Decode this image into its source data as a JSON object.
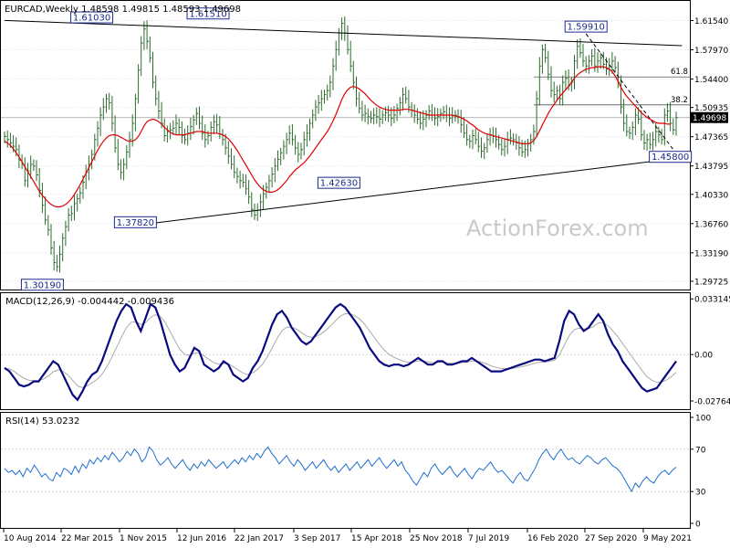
{
  "chart_data": {
    "type": "line",
    "symbol_header": "EURCAD,Weekly  1.48598 1.49815 1.48593 1.49698",
    "watermark": "ActionForex.com",
    "x_tick_labels": [
      "10 Aug 2014",
      "22 Mar 2015",
      "1 Nov 2015",
      "12 Jun 2016",
      "22 Jan 2017",
      "3 Sep 2017",
      "15 Apr 2018",
      "25 Nov 2018",
      "7 Jul 2019",
      "16 Feb 2020",
      "27 Sep 2020",
      "9 May 2021"
    ],
    "price_panel": {
      "ylim": [
        1.2905,
        1.636
      ],
      "y_tick_labels": [
        "1.61540",
        "1.57970",
        "1.54400",
        "1.50935",
        "1.47365",
        "1.43795",
        "1.40330",
        "1.36760",
        "1.33190",
        "1.29725"
      ],
      "current_price": "1.49698",
      "price_labels": [
        "1.61030",
        "1.61510",
        "1.59910",
        "1.37820",
        "1.42630",
        "1.45800",
        "1.30190"
      ],
      "fib_labels": [
        "61.8",
        "38.2"
      ],
      "fib_levels": [
        1.5466,
        1.5125
      ],
      "close_series": [
        1.474,
        1.47,
        1.466,
        1.462,
        1.458,
        1.445,
        1.44,
        1.42,
        1.432,
        1.44,
        1.438,
        1.427,
        1.408,
        1.39,
        1.372,
        1.36,
        1.338,
        1.32,
        1.315,
        1.33,
        1.35,
        1.364,
        1.378,
        1.38,
        1.392,
        1.398,
        1.405,
        1.418,
        1.43,
        1.44,
        1.452,
        1.47,
        1.484,
        1.5,
        1.51,
        1.52,
        1.515,
        1.49,
        1.46,
        1.44,
        1.43,
        1.44,
        1.455,
        1.47,
        1.49,
        1.52,
        1.555,
        1.588,
        1.605,
        1.59,
        1.57,
        1.54,
        1.52,
        1.505,
        1.49,
        1.475,
        1.48,
        1.482,
        1.484,
        1.49,
        1.485,
        1.475,
        1.47,
        1.478,
        1.486,
        1.494,
        1.502,
        1.49,
        1.478,
        1.47,
        1.475,
        1.485,
        1.492,
        1.488,
        1.477,
        1.47,
        1.46,
        1.45,
        1.44,
        1.43,
        1.425,
        1.42,
        1.418,
        1.41,
        1.4,
        1.385,
        1.378,
        1.384,
        1.394,
        1.404,
        1.412,
        1.42,
        1.428,
        1.438,
        1.446,
        1.454,
        1.462,
        1.47,
        1.478,
        1.47,
        1.46,
        1.452,
        1.458,
        1.47,
        1.478,
        1.49,
        1.5,
        1.51,
        1.515,
        1.52,
        1.525,
        1.53,
        1.54,
        1.56,
        1.58,
        1.6,
        1.612,
        1.6,
        1.58,
        1.56,
        1.54,
        1.52,
        1.508,
        1.5,
        1.502,
        1.498,
        1.496,
        1.5,
        1.498,
        1.495,
        1.5,
        1.503,
        1.5,
        1.496,
        1.5,
        1.508,
        1.515,
        1.525,
        1.52,
        1.51,
        1.506,
        1.5,
        1.495,
        1.49,
        1.495,
        1.5,
        1.505,
        1.5,
        1.496,
        1.498,
        1.502,
        1.504,
        1.5,
        1.496,
        1.499,
        1.5,
        1.498,
        1.488,
        1.478,
        1.47,
        1.468,
        1.475,
        1.47,
        1.462,
        1.456,
        1.46,
        1.47,
        1.476,
        1.474,
        1.47,
        1.464,
        1.458,
        1.462,
        1.47,
        1.472,
        1.47,
        1.466,
        1.46,
        1.455,
        1.458,
        1.465,
        1.47,
        1.48,
        1.52,
        1.56,
        1.58,
        1.57,
        1.55,
        1.53,
        1.525,
        1.53,
        1.52,
        1.54,
        1.545,
        1.536,
        1.54,
        1.566,
        1.584,
        1.576,
        1.566,
        1.56,
        1.566,
        1.572,
        1.56,
        1.566,
        1.57,
        1.562,
        1.556,
        1.56,
        1.566,
        1.558,
        1.54,
        1.51,
        1.49,
        1.48,
        1.478,
        1.485,
        1.5,
        1.495,
        1.476,
        1.466,
        1.47,
        1.464,
        1.47,
        1.48,
        1.476,
        1.47,
        1.5,
        1.505,
        1.49,
        1.482,
        1.497
      ],
      "ma_series": [
        1.468,
        1.466,
        1.463,
        1.459,
        1.454,
        1.449,
        1.443,
        1.437,
        1.431,
        1.425,
        1.419,
        1.413,
        1.407,
        1.402,
        1.398,
        1.394,
        1.391,
        1.389,
        1.388,
        1.388,
        1.389,
        1.391,
        1.394,
        1.398,
        1.403,
        1.409,
        1.415,
        1.422,
        1.429,
        1.436,
        1.443,
        1.45,
        1.457,
        1.463,
        1.468,
        1.472,
        1.475,
        1.476,
        1.476,
        1.475,
        1.473,
        1.471,
        1.469,
        1.468,
        1.468,
        1.47,
        1.474,
        1.48,
        1.487,
        1.492,
        1.494,
        1.495,
        1.494,
        1.492,
        1.489,
        1.485,
        1.482,
        1.479,
        1.477,
        1.476,
        1.476,
        1.476,
        1.476,
        1.477,
        1.478,
        1.479,
        1.48,
        1.48,
        1.48,
        1.479,
        1.478,
        1.478,
        1.478,
        1.478,
        1.477,
        1.476,
        1.474,
        1.471,
        1.467,
        1.462,
        1.457,
        1.451,
        1.445,
        1.439,
        1.433,
        1.427,
        1.421,
        1.416,
        1.412,
        1.409,
        1.407,
        1.406,
        1.406,
        1.407,
        1.409,
        1.412,
        1.416,
        1.42,
        1.425,
        1.429,
        1.433,
        1.436,
        1.439,
        1.442,
        1.446,
        1.45,
        1.455,
        1.46,
        1.465,
        1.47,
        1.475,
        1.48,
        1.486,
        1.493,
        1.501,
        1.51,
        1.519,
        1.526,
        1.531,
        1.534,
        1.535,
        1.534,
        1.532,
        1.529,
        1.526,
        1.522,
        1.518,
        1.515,
        1.512,
        1.51,
        1.508,
        1.507,
        1.506,
        1.506,
        1.506,
        1.506,
        1.506,
        1.507,
        1.507,
        1.507,
        1.506,
        1.505,
        1.504,
        1.503,
        1.502,
        1.501,
        1.5,
        1.5,
        1.5,
        1.5,
        1.5,
        1.5,
        1.5,
        1.5,
        1.5,
        1.499,
        1.498,
        1.497,
        1.495,
        1.493,
        1.49,
        1.488,
        1.485,
        1.482,
        1.48,
        1.478,
        1.477,
        1.476,
        1.475,
        1.474,
        1.473,
        1.472,
        1.471,
        1.47,
        1.469,
        1.468,
        1.467,
        1.466,
        1.465,
        1.465,
        1.465,
        1.466,
        1.469,
        1.474,
        1.481,
        1.488,
        1.495,
        1.502,
        1.508,
        1.513,
        1.518,
        1.523,
        1.527,
        1.531,
        1.535,
        1.54,
        1.545,
        1.549,
        1.552,
        1.554,
        1.556,
        1.557,
        1.558,
        1.558,
        1.559,
        1.559,
        1.559,
        1.558,
        1.556,
        1.553,
        1.548,
        1.541,
        1.534,
        1.528,
        1.523,
        1.519,
        1.515,
        1.511,
        1.507,
        1.503,
        1.5,
        1.497,
        1.495,
        1.493,
        1.491,
        1.49,
        1.49,
        1.49,
        1.489,
        1.489
      ],
      "trendlines": [
        {
          "from": [
            0,
            1.6155
          ],
          "to": [
            233,
            1.5848
          ]
        },
        {
          "from": [
            44,
            1.365
          ],
          "to": [
            233,
            1.448
          ]
        },
        {
          "from": [
            200,
            1.5991
          ],
          "to": [
            230,
            1.458
          ]
        }
      ]
    },
    "macd_panel": {
      "label": "MACD(12,26,9) -0.004442 -0.009436",
      "ylim": [
        -0.032,
        0.036
      ],
      "y_tick_labels": [
        "0.033145",
        "0.00",
        "-0.027648"
      ],
      "macd": [
        -0.008,
        -0.01,
        -0.014,
        -0.018,
        -0.019,
        -0.018,
        -0.016,
        -0.016,
        -0.012,
        -0.008,
        -0.004,
        -0.006,
        -0.012,
        -0.018,
        -0.024,
        -0.027,
        -0.022,
        -0.016,
        -0.012,
        -0.01,
        -0.004,
        0.004,
        0.012,
        0.02,
        0.026,
        0.03,
        0.028,
        0.02,
        0.014,
        0.022,
        0.03,
        0.028,
        0.02,
        0.01,
        0.0,
        -0.006,
        -0.01,
        -0.008,
        -0.002,
        0.004,
        0.002,
        -0.006,
        -0.008,
        -0.01,
        -0.008,
        -0.004,
        -0.006,
        -0.012,
        -0.014,
        -0.016,
        -0.014,
        -0.008,
        -0.004,
        0.002,
        0.01,
        0.018,
        0.024,
        0.026,
        0.022,
        0.016,
        0.012,
        0.008,
        0.006,
        0.008,
        0.012,
        0.016,
        0.02,
        0.024,
        0.028,
        0.03,
        0.028,
        0.024,
        0.02,
        0.016,
        0.01,
        0.004,
        0.0,
        -0.004,
        -0.006,
        -0.007,
        -0.006,
        -0.006,
        -0.007,
        -0.006,
        -0.004,
        -0.002,
        -0.004,
        -0.006,
        -0.006,
        -0.004,
        -0.004,
        -0.006,
        -0.006,
        -0.005,
        -0.004,
        -0.004,
        -0.002,
        -0.004,
        -0.006,
        -0.008,
        -0.01,
        -0.01,
        -0.01,
        -0.009,
        -0.008,
        -0.007,
        -0.006,
        -0.005,
        -0.004,
        -0.003,
        -0.003,
        -0.004,
        -0.003,
        -0.002,
        0.008,
        0.02,
        0.026,
        0.024,
        0.018,
        0.014,
        0.016,
        0.02,
        0.024,
        0.02,
        0.012,
        0.006,
        0.002,
        -0.004,
        -0.008,
        -0.012,
        -0.016,
        -0.02,
        -0.022,
        -0.021,
        -0.02,
        -0.016,
        -0.012,
        -0.008,
        -0.004
      ]
    },
    "rsi_panel": {
      "label": "RSI(14) 53.0232",
      "ylim": [
        0,
        100
      ],
      "y_tick_labels": [
        "100",
        "70",
        "30",
        "0"
      ],
      "levels": [
        70,
        30
      ],
      "rsi": [
        52,
        48,
        50,
        46,
        50,
        44,
        52,
        48,
        55,
        50,
        44,
        47,
        42,
        40,
        48,
        44,
        52,
        50,
        46,
        54,
        48,
        56,
        52,
        60,
        56,
        62,
        58,
        64,
        60,
        67,
        63,
        58,
        62,
        68,
        64,
        70,
        66,
        58,
        62,
        72,
        68,
        60,
        55,
        58,
        62,
        56,
        52,
        56,
        60,
        54,
        50,
        56,
        52,
        58,
        54,
        60,
        56,
        52,
        55,
        58,
        52,
        56,
        60,
        56,
        62,
        58,
        64,
        60,
        66,
        62,
        68,
        72,
        66,
        62,
        56,
        60,
        64,
        58,
        54,
        60,
        56,
        50,
        54,
        58,
        52,
        56,
        60,
        54,
        50,
        54,
        48,
        52,
        56,
        50,
        54,
        58,
        52,
        56,
        60,
        54,
        58,
        62,
        56,
        52,
        56,
        60,
        54,
        58,
        50,
        46,
        40,
        36,
        42,
        48,
        44,
        52,
        56,
        50,
        46,
        50,
        54,
        48,
        44,
        48,
        52,
        46,
        42,
        48,
        52,
        50,
        54,
        58,
        52,
        48,
        50,
        46,
        42,
        38,
        44,
        48,
        42,
        40,
        46,
        52,
        60,
        66,
        70,
        64,
        60,
        66,
        70,
        64,
        60,
        62,
        58,
        56,
        60,
        64,
        62,
        58,
        56,
        60,
        62,
        58,
        54,
        52,
        48,
        42,
        36,
        30,
        38,
        34,
        40,
        44,
        40,
        38,
        44,
        48,
        50,
        46,
        50,
        53
      ]
    }
  }
}
